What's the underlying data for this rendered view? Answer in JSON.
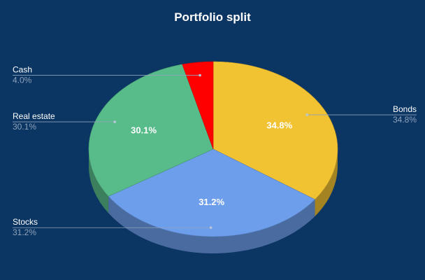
{
  "chart_data": {
    "type": "pie",
    "title": "Portfolio split",
    "style": "3d",
    "background": "#0b3563",
    "slices": [
      {
        "label": "Bonds",
        "value": 34.8,
        "display": "34.8%",
        "color": "#f1c232"
      },
      {
        "label": "Stocks",
        "value": 31.2,
        "display": "31.2%",
        "color": "#6d9eeb"
      },
      {
        "label": "Real estate",
        "value": 30.1,
        "display": "30.1%",
        "color": "#57bb8a"
      },
      {
        "label": "Cash",
        "value": 4.0,
        "display": "4.0%",
        "color": "#ff0000"
      }
    ],
    "inside_labels": [
      "34.8%",
      "31.2%",
      "30.1%"
    ],
    "legend": "leader-lines"
  }
}
